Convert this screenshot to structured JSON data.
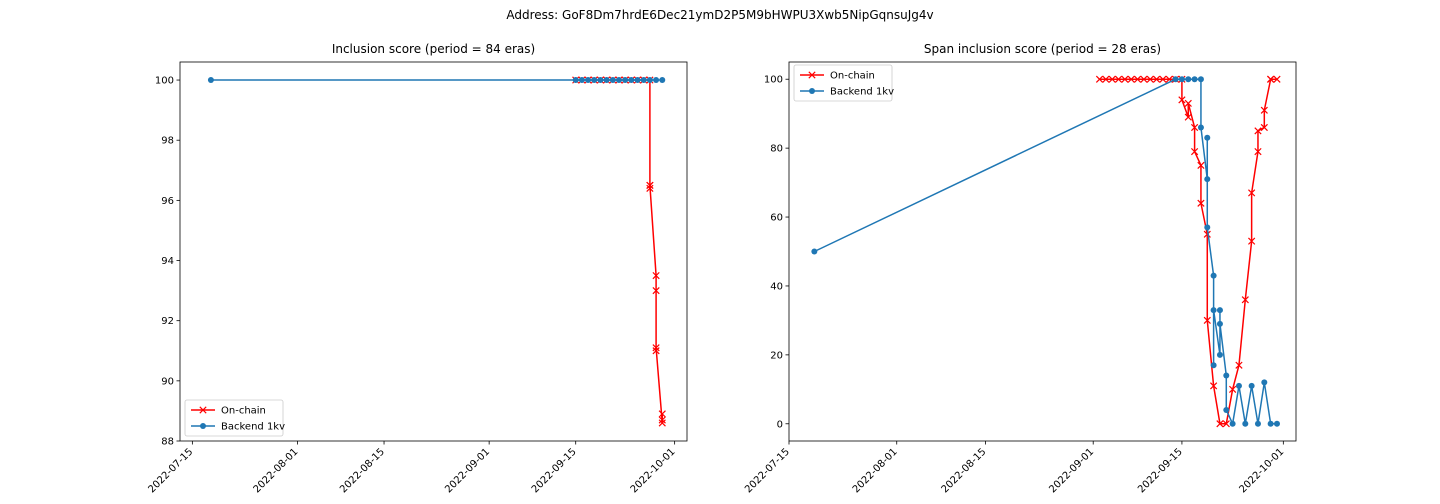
{
  "figure": {
    "suptitle": "Address: GoF8Dm7hrdE6Dec21ymD2P5M9bHWPU3Xwb5NipGqnsuJg4v"
  },
  "colors": {
    "onchain": "#ff0000",
    "backend": "#1f77b4",
    "axes": "#000000"
  },
  "chart_data": [
    {
      "type": "line",
      "title": "Inclusion score (period = 84 eras)",
      "xlabel": "",
      "ylabel": "",
      "x_type": "date",
      "xlim": [
        "2022-07-13",
        "2022-10-03"
      ],
      "ylim": [
        88,
        100.6
      ],
      "x_ticks": [
        "2022-07-15",
        "2022-08-01",
        "2022-08-15",
        "2022-09-01",
        "2022-09-15",
        "2022-10-01"
      ],
      "y_ticks": [
        88,
        90,
        92,
        94,
        96,
        98,
        100
      ],
      "legend": {
        "position": "lower-left",
        "entries": [
          "On-chain",
          "Backend 1kv"
        ]
      },
      "grid": false,
      "series": [
        {
          "name": "On-chain",
          "color": "#ff0000",
          "marker": "x",
          "x": [
            "2022-09-15",
            "2022-09-16",
            "2022-09-17",
            "2022-09-18",
            "2022-09-19",
            "2022-09-20",
            "2022-09-21",
            "2022-09-22",
            "2022-09-23",
            "2022-09-24",
            "2022-09-25",
            "2022-09-26",
            "2022-09-27",
            "2022-09-27",
            "2022-09-27",
            "2022-09-27",
            "2022-09-28",
            "2022-09-28",
            "2022-09-28",
            "2022-09-28",
            "2022-09-29",
            "2022-09-29",
            "2022-09-29"
          ],
          "y": [
            100,
            100,
            100,
            100,
            100,
            100,
            100,
            100,
            100,
            100,
            100,
            100,
            100,
            96.4,
            96.5,
            96.5,
            93.5,
            93.0,
            91.0,
            91.1,
            88.6,
            88.7,
            88.9
          ]
        },
        {
          "name": "Backend 1kv",
          "color": "#1f77b4",
          "marker": "o",
          "x": [
            "2022-07-18",
            "2022-09-15",
            "2022-09-16",
            "2022-09-17",
            "2022-09-18",
            "2022-09-19",
            "2022-09-20",
            "2022-09-21",
            "2022-09-22",
            "2022-09-23",
            "2022-09-24",
            "2022-09-25",
            "2022-09-26",
            "2022-09-27",
            "2022-09-28",
            "2022-09-29"
          ],
          "y": [
            100,
            100,
            100,
            100,
            100,
            100,
            100,
            100,
            100,
            100,
            100,
            100,
            100,
            100,
            100,
            100
          ]
        }
      ]
    },
    {
      "type": "line",
      "title": "Span inclusion score (period = 28 eras)",
      "xlabel": "",
      "ylabel": "",
      "x_type": "date",
      "xlim": [
        "2022-07-15",
        "2022-10-03"
      ],
      "ylim": [
        -5,
        105
      ],
      "x_ticks": [
        "2022-07-15",
        "2022-08-01",
        "2022-08-15",
        "2022-09-01",
        "2022-09-15",
        "2022-10-01"
      ],
      "y_ticks": [
        0,
        20,
        40,
        60,
        80,
        100
      ],
      "legend": {
        "position": "upper-left",
        "entries": [
          "On-chain",
          "Backend 1kv"
        ]
      },
      "grid": false,
      "series": [
        {
          "name": "On-chain",
          "color": "#ff0000",
          "marker": "x",
          "x": [
            "2022-09-02",
            "2022-09-03",
            "2022-09-04",
            "2022-09-05",
            "2022-09-06",
            "2022-09-07",
            "2022-09-08",
            "2022-09-09",
            "2022-09-10",
            "2022-09-11",
            "2022-09-12",
            "2022-09-13",
            "2022-09-14",
            "2022-09-15",
            "2022-09-15",
            "2022-09-16",
            "2022-09-16",
            "2022-09-17",
            "2022-09-17",
            "2022-09-18",
            "2022-09-18",
            "2022-09-19",
            "2022-09-19",
            "2022-09-20",
            "2022-09-21",
            "2022-09-22",
            "2022-09-23",
            "2022-09-24",
            "2022-09-25",
            "2022-09-26",
            "2022-09-26",
            "2022-09-27",
            "2022-09-27",
            "2022-09-28",
            "2022-09-28",
            "2022-09-29",
            "2022-09-29",
            "2022-09-30"
          ],
          "y": [
            100,
            100,
            100,
            100,
            100,
            100,
            100,
            100,
            100,
            100,
            100,
            100,
            100,
            100,
            94,
            89,
            93,
            86,
            79,
            75,
            64,
            55,
            30,
            11,
            0,
            0,
            10,
            17,
            36,
            53,
            67,
            79,
            85,
            86,
            91,
            100,
            100,
            100
          ]
        },
        {
          "name": "Backend 1kv",
          "color": "#1f77b4",
          "marker": "o",
          "x": [
            "2022-07-19",
            "2022-09-14",
            "2022-09-15",
            "2022-09-16",
            "2022-09-17",
            "2022-09-18",
            "2022-09-18",
            "2022-09-19",
            "2022-09-19",
            "2022-09-19",
            "2022-09-20",
            "2022-09-20",
            "2022-09-20",
            "2022-09-21",
            "2022-09-21",
            "2022-09-21",
            "2022-09-22",
            "2022-09-22",
            "2022-09-23",
            "2022-09-24",
            "2022-09-25",
            "2022-09-26",
            "2022-09-27",
            "2022-09-28",
            "2022-09-29",
            "2022-09-30"
          ],
          "y": [
            50,
            100,
            100,
            100,
            100,
            100,
            86,
            71,
            83,
            57,
            43,
            17,
            33,
            20,
            33,
            29,
            14,
            4,
            0,
            11,
            0,
            11,
            0,
            12,
            0,
            0
          ]
        }
      ]
    }
  ]
}
